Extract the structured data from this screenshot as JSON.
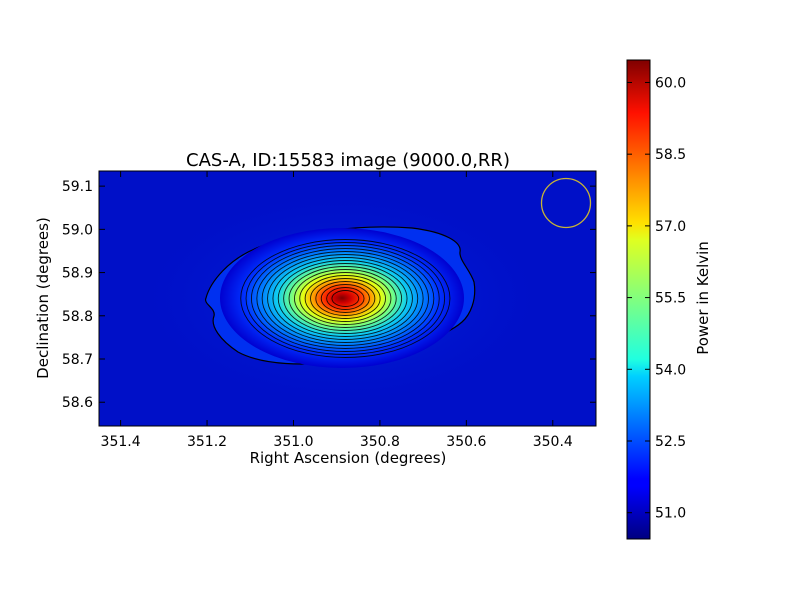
{
  "chart_data": {
    "type": "heatmap",
    "title": "CAS-A, ID:15583 image (9000.0,RR)",
    "xlabel": "Right Ascension (degrees)",
    "ylabel": "Declination (degrees)",
    "xlim": [
      351.45,
      350.3
    ],
    "ylim": [
      58.545,
      59.135
    ],
    "x_ticks": [
      "351.4",
      "351.2",
      "351.0",
      "350.8",
      "350.6",
      "350.4"
    ],
    "x_tick_values": [
      351.4,
      351.2,
      351.0,
      350.8,
      350.6,
      350.4
    ],
    "y_ticks": [
      "58.6",
      "58.7",
      "58.8",
      "58.9",
      "59.0",
      "59.1"
    ],
    "y_tick_values": [
      58.6,
      58.7,
      58.8,
      58.9,
      59.0,
      59.1
    ],
    "source_peak": {
      "ra": 350.88,
      "dec": 58.84,
      "value": 60.45
    },
    "background_level": 50.5,
    "contour_count": 18,
    "beam": {
      "ra": 350.365,
      "dec": 59.062,
      "color": "#c8b436"
    },
    "colormap": "jet",
    "grid": false,
    "colorbar": {
      "label": "Power in Kelvin",
      "vmin": 50.45,
      "vmax": 60.47,
      "ticks": [
        "51.0",
        "52.5",
        "54.0",
        "55.5",
        "57.0",
        "58.5",
        "60.0"
      ],
      "tick_values": [
        51.0,
        52.5,
        54.0,
        55.5,
        57.0,
        58.5,
        60.0
      ],
      "placement": "right"
    }
  }
}
